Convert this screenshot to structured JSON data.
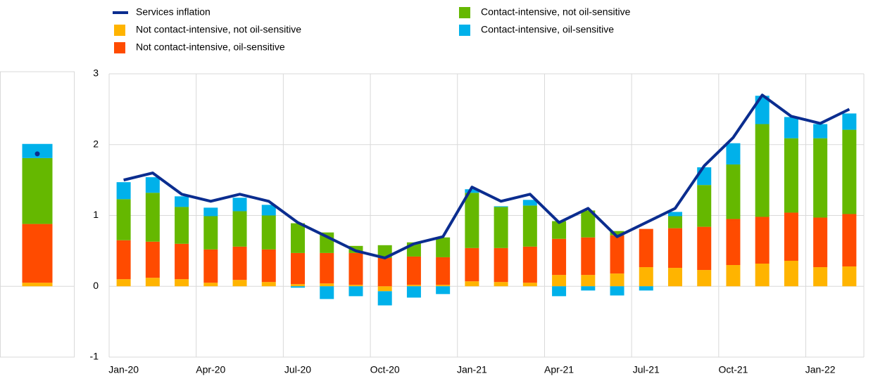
{
  "chart_data": [
    {
      "type": "bar",
      "stacked": true,
      "ylim": [
        -1,
        3
      ],
      "series": [
        {
          "name": null,
          "color": "#ffb400",
          "values": [
            0.05
          ]
        },
        {
          "name": null,
          "color": "#ff4b00",
          "values": [
            0.83
          ]
        },
        {
          "name": null,
          "color": "#65b800",
          "values": [
            0.93
          ]
        },
        {
          "name": null,
          "color": "#00b1ea",
          "values": [
            0.2
          ]
        }
      ],
      "points": {
        "color": "#0b2d8f",
        "values": [
          1.87
        ]
      }
    },
    {
      "type": "bar",
      "stacked": true,
      "ylim": [
        -1,
        3
      ],
      "yticks": [
        -1,
        0,
        1,
        2,
        3
      ],
      "grid": true,
      "categories": [
        "Jan-20",
        null,
        null,
        "Apr-20",
        null,
        null,
        "Jul-20",
        null,
        null,
        "Oct-20",
        null,
        null,
        "Jan-21",
        null,
        null,
        "Apr-21",
        null,
        null,
        "Jul-21",
        null,
        null,
        "Oct-21",
        null,
        null,
        "Jan-22",
        null
      ],
      "line": {
        "name": "Services inflation",
        "color": "#0b2d8f",
        "values": [
          1.5,
          1.6,
          1.3,
          1.2,
          1.3,
          1.2,
          0.9,
          0.7,
          0.5,
          0.4,
          0.6,
          0.7,
          1.4,
          1.2,
          1.3,
          0.9,
          1.1,
          0.7,
          0.9,
          1.1,
          1.7,
          2.1,
          2.7,
          2.4,
          2.3,
          2.5
        ]
      },
      "series": [
        {
          "name": "Not contact-intensive, not oil-sensitive",
          "color": "#ffb400",
          "values": [
            0.1,
            0.12,
            0.1,
            0.05,
            0.09,
            0.06,
            0.03,
            0.04,
            0.02,
            -0.07,
            0.02,
            0.02,
            0.07,
            0.06,
            0.05,
            0.16,
            0.16,
            0.18,
            0.27,
            0.26,
            0.23,
            0.3,
            0.32,
            0.36,
            0.27,
            0.28
          ]
        },
        {
          "name": "Not contact-intensive, oil-sensitive",
          "color": "#ff4b00",
          "values": [
            0.55,
            0.51,
            0.5,
            0.47,
            0.47,
            0.46,
            0.44,
            0.43,
            0.45,
            0.4,
            0.4,
            0.39,
            0.47,
            0.48,
            0.51,
            0.51,
            0.53,
            0.54,
            0.54,
            0.56,
            0.61,
            0.65,
            0.66,
            0.68,
            0.7,
            0.74
          ]
        },
        {
          "name": "Contact-intensive, not oil-sensitive",
          "color": "#65b800",
          "values": [
            0.58,
            0.69,
            0.52,
            0.47,
            0.5,
            0.48,
            0.42,
            0.29,
            0.1,
            0.18,
            0.2,
            0.28,
            0.78,
            0.58,
            0.58,
            0.25,
            0.38,
            0.06,
            0,
            0.17,
            0.59,
            0.77,
            1.31,
            1.05,
            1.12,
            1.19
          ]
        },
        {
          "name": "Contact-intensive, oil-sensitive",
          "color": "#00b1ea",
          "values": [
            0.24,
            0.22,
            0.15,
            0.12,
            0.19,
            0.15,
            -0.02,
            -0.18,
            -0.14,
            -0.2,
            -0.16,
            -0.11,
            0.05,
            0.01,
            0.08,
            -0.14,
            -0.06,
            -0.13,
            -0.06,
            0.06,
            0.25,
            0.3,
            0.4,
            0.3,
            0.2,
            0.23
          ]
        }
      ]
    }
  ]
}
